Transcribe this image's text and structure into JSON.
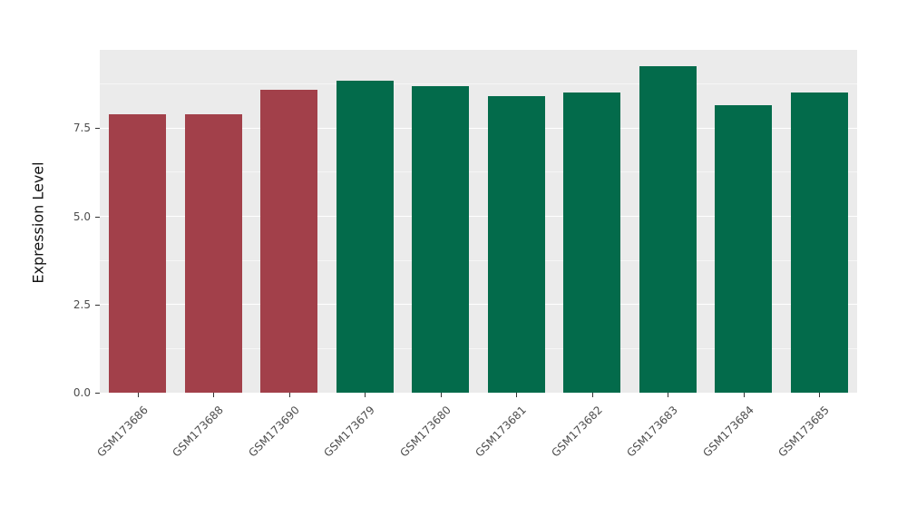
{
  "chart_data": {
    "type": "bar",
    "title": "",
    "xlabel": "",
    "ylabel": "Expression Level",
    "ylim": [
      0,
      9.72
    ],
    "yticks": [
      0.0,
      2.5,
      5.0,
      7.5
    ],
    "ytick_labels": [
      "0.0",
      "2.5",
      "5.0",
      "7.5"
    ],
    "minor_gridlines": [
      1.25,
      3.75,
      6.25,
      8.75
    ],
    "grid": true,
    "legend_position": "none",
    "categories": [
      "GSM173686",
      "GSM173688",
      "GSM173690",
      "GSM173679",
      "GSM173680",
      "GSM173681",
      "GSM173682",
      "GSM173683",
      "GSM173684",
      "GSM173685"
    ],
    "values": [
      7.9,
      7.9,
      8.6,
      8.85,
      8.7,
      8.4,
      8.5,
      9.25,
      8.15,
      8.5
    ],
    "bar_colors": [
      "#A2404A",
      "#A2404A",
      "#A2404A",
      "#036B4B",
      "#036B4B",
      "#036B4B",
      "#036B4B",
      "#036B4B",
      "#036B4B",
      "#036B4B"
    ],
    "colors": {
      "group_red": "#A2404A",
      "group_green": "#036B4B",
      "panel_background": "#EBEBEB",
      "gridline": "#FFFFFF",
      "axis_text": "#4D4D4D"
    }
  }
}
